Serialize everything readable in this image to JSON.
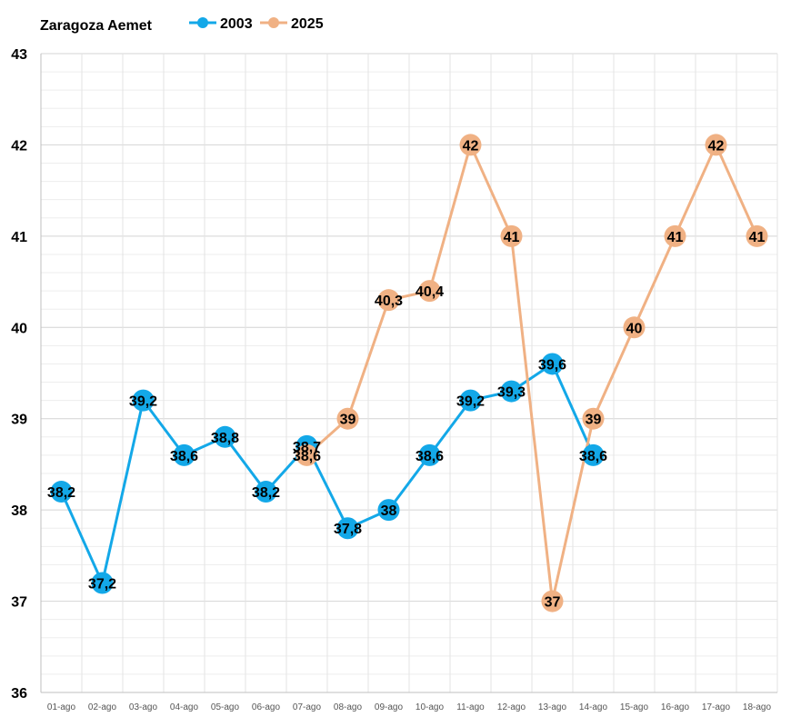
{
  "chart_data": {
    "type": "line",
    "title": "Zaragoza Aemet",
    "categories": [
      "01-ago",
      "02-ago",
      "03-ago",
      "04-ago",
      "05-ago",
      "06-ago",
      "07-ago",
      "08-ago",
      "09-ago",
      "10-ago",
      "11-ago",
      "12-ago",
      "13-ago",
      "14-ago",
      "15-ago",
      "16-ago",
      "17-ago",
      "18-ago"
    ],
    "ylim": [
      36,
      43
    ],
    "yticks": [
      "36",
      "37",
      "38",
      "39",
      "40",
      "41",
      "42",
      "43"
    ],
    "grid": true,
    "legend_position": "top",
    "series": [
      {
        "name": "2003",
        "color": "#13a8e8",
        "values": [
          38.2,
          37.2,
          39.2,
          38.6,
          38.8,
          38.2,
          38.7,
          37.8,
          38,
          38.6,
          39.2,
          39.3,
          39.6,
          38.6,
          null,
          null,
          null,
          null
        ],
        "labels": [
          "38,2",
          "37,2",
          "39,2",
          "38,6",
          "38,8",
          "38,2",
          "38,7",
          "37,8",
          "38",
          "38,6",
          "39,2",
          "39,3",
          "39,6",
          "38,6",
          "",
          "",
          "",
          ""
        ]
      },
      {
        "name": "2025",
        "color": "#f0b184",
        "values": [
          null,
          null,
          null,
          null,
          null,
          null,
          38.6,
          39,
          40.3,
          40.4,
          42,
          41,
          37,
          39,
          40,
          41,
          42,
          41
        ],
        "labels": [
          "",
          "",
          "",
          "",
          "",
          "",
          "38,6",
          "39",
          "40,3",
          "40,4",
          "42",
          "41",
          "37",
          "39",
          "40",
          "41",
          "42",
          "41"
        ]
      }
    ]
  }
}
